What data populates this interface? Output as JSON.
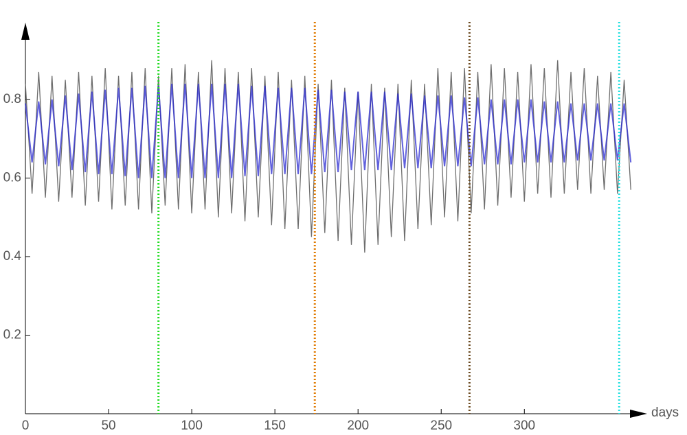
{
  "chart_data": {
    "type": "line",
    "x_label": "days",
    "xlim": [
      0,
      373
    ],
    "ylim": [
      0,
      0.98
    ],
    "xticks": [
      0,
      50,
      100,
      150,
      200,
      250,
      300
    ],
    "yticks": [
      0.2,
      0.4,
      0.6,
      0.8
    ],
    "x": [
      0,
      4,
      8,
      12,
      16,
      20,
      24,
      28,
      32,
      36,
      40,
      44,
      48,
      52,
      56,
      60,
      64,
      68,
      72,
      76,
      80,
      84,
      88,
      92,
      96,
      100,
      104,
      108,
      112,
      116,
      120,
      124,
      128,
      132,
      136,
      140,
      144,
      148,
      152,
      156,
      160,
      164,
      168,
      172,
      176,
      180,
      184,
      188,
      192,
      196,
      200,
      204,
      208,
      212,
      216,
      220,
      224,
      228,
      232,
      236,
      240,
      244,
      248,
      252,
      256,
      260,
      264,
      268,
      272,
      276,
      280,
      284,
      288,
      292,
      296,
      300,
      304,
      308,
      312,
      316,
      320,
      324,
      328,
      332,
      336,
      340,
      344,
      348,
      352,
      356,
      360,
      364
    ],
    "series": [
      {
        "color": "#555555",
        "values": [
          0.84,
          0.56,
          0.87,
          0.55,
          0.86,
          0.54,
          0.85,
          0.55,
          0.87,
          0.53,
          0.86,
          0.54,
          0.88,
          0.52,
          0.86,
          0.53,
          0.87,
          0.52,
          0.88,
          0.51,
          0.86,
          0.53,
          0.88,
          0.52,
          0.89,
          0.51,
          0.87,
          0.52,
          0.9,
          0.5,
          0.88,
          0.51,
          0.87,
          0.49,
          0.88,
          0.5,
          0.86,
          0.48,
          0.87,
          0.47,
          0.85,
          0.47,
          0.86,
          0.45,
          0.84,
          0.46,
          0.85,
          0.44,
          0.83,
          0.43,
          0.82,
          0.41,
          0.84,
          0.43,
          0.83,
          0.45,
          0.84,
          0.44,
          0.85,
          0.47,
          0.84,
          0.48,
          0.88,
          0.5,
          0.87,
          0.49,
          0.88,
          0.51,
          0.87,
          0.52,
          0.89,
          0.53,
          0.88,
          0.55,
          0.87,
          0.54,
          0.89,
          0.56,
          0.88,
          0.55,
          0.9,
          0.56,
          0.87,
          0.57,
          0.88,
          0.56,
          0.86,
          0.57,
          0.87,
          0.56,
          0.85,
          0.57
        ]
      },
      {
        "color": "#2b2bd0",
        "values": [
          0.79,
          0.64,
          0.795,
          0.635,
          0.8,
          0.63,
          0.81,
          0.62,
          0.815,
          0.615,
          0.82,
          0.61,
          0.825,
          0.61,
          0.83,
          0.605,
          0.83,
          0.6,
          0.835,
          0.6,
          0.835,
          0.6,
          0.84,
          0.6,
          0.84,
          0.6,
          0.84,
          0.6,
          0.84,
          0.6,
          0.84,
          0.6,
          0.84,
          0.605,
          0.835,
          0.605,
          0.835,
          0.61,
          0.83,
          0.61,
          0.83,
          0.61,
          0.83,
          0.61,
          0.825,
          0.615,
          0.825,
          0.615,
          0.82,
          0.62,
          0.82,
          0.62,
          0.82,
          0.62,
          0.82,
          0.62,
          0.815,
          0.625,
          0.815,
          0.625,
          0.81,
          0.625,
          0.81,
          0.63,
          0.81,
          0.63,
          0.805,
          0.63,
          0.805,
          0.635,
          0.8,
          0.635,
          0.8,
          0.635,
          0.8,
          0.64,
          0.8,
          0.64,
          0.795,
          0.64,
          0.795,
          0.64,
          0.79,
          0.645,
          0.79,
          0.645,
          0.79,
          0.645,
          0.79,
          0.645,
          0.79,
          0.64
        ]
      }
    ],
    "vlines": [
      {
        "x": 80,
        "color": "#22dd22"
      },
      {
        "x": 174,
        "color": "#e07a00"
      },
      {
        "x": 267,
        "color": "#6b4a20"
      },
      {
        "x": 357,
        "color": "#22e0e0"
      }
    ]
  }
}
